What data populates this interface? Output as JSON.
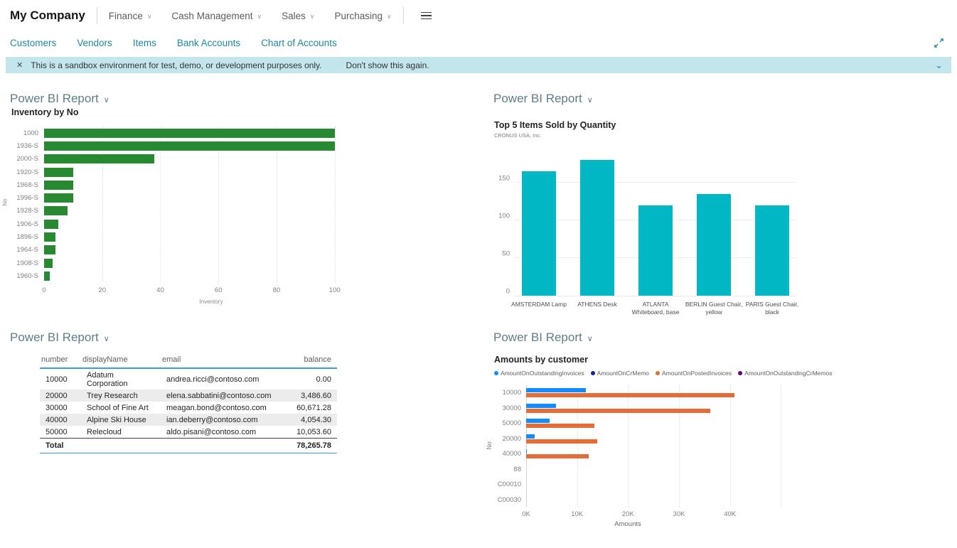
{
  "header": {
    "company": "My Company",
    "menus": [
      {
        "label": "Finance"
      },
      {
        "label": "Cash Management"
      },
      {
        "label": "Sales"
      },
      {
        "label": "Purchasing"
      }
    ],
    "nav_links": [
      "Customers",
      "Vendors",
      "Items",
      "Bank Accounts",
      "Chart of Accounts"
    ]
  },
  "banner": {
    "message": "This is a sandbox environment for test, demo, or development purposes only.",
    "action": "Don't show this again."
  },
  "parts": {
    "header_label": "Power BI Report"
  },
  "icons": {
    "close": "✕",
    "chevron_down": "∨",
    "hamburger": "hamburger-lines",
    "expand": "diagonal-resize-arrow"
  },
  "colors": {
    "link_teal": "#1b8a9e",
    "part_header": "#5f7d89",
    "banner_bg": "#c2e6ec",
    "inventory_green": "#288a30",
    "top5_teal": "#00b7c3",
    "table_header_border": "#3a99e8",
    "series_blue": "#118DFF",
    "series_navy": "#12239E",
    "series_orange": "#E66C37",
    "series_purple": "#6B007B"
  },
  "chart_data": [
    {
      "id": "inventory",
      "type": "bar",
      "orientation": "horizontal",
      "title": "Inventory by No",
      "categories": [
        "1000",
        "1936-S",
        "2000-S",
        "1920-S",
        "1968-S",
        "1996-S",
        "1928-S",
        "1906-S",
        "1896-S",
        "1964-S",
        "1908-S",
        "1960-S"
      ],
      "values": [
        100,
        100,
        38,
        10,
        10,
        10,
        8,
        5,
        4,
        4,
        3,
        2
      ],
      "xlabel": "Inventory",
      "ylabel": "No",
      "xticks": [
        0,
        20,
        40,
        60,
        80,
        100
      ],
      "xlim": [
        0,
        115
      ],
      "grid": true,
      "bar_color": "#288a30"
    },
    {
      "id": "top5-items",
      "type": "bar",
      "orientation": "vertical",
      "title": "Top 5 Items Sold by Quantity",
      "subtitle": "CRONUS USA, Inc.",
      "categories": [
        "AMSTERDAM Lamp",
        "ATHENS Desk",
        "ATLANTA Whiteboard, base",
        "BERLIN Guest Chair, yellow",
        "PARIS Guest Chair, black"
      ],
      "values": [
        165,
        180,
        120,
        135,
        120
      ],
      "yticks": [
        0,
        50,
        100,
        150
      ],
      "ylim": [
        0,
        200
      ],
      "grid": true,
      "bar_color": "#00b7c3"
    },
    {
      "id": "customer-table",
      "type": "table",
      "columns": [
        "number",
        "displayName",
        "email",
        "balance"
      ],
      "rows": [
        [
          "10000",
          "Adatum Corporation",
          "andrea.ricci@contoso.com",
          "0.00"
        ],
        [
          "20000",
          "Trey Research",
          "elena.sabbatini@contoso.com",
          "3,486.60"
        ],
        [
          "30000",
          "School of Fine Art",
          "meagan.bond@contoso.com",
          "60,671.28"
        ],
        [
          "40000",
          "Alpine Ski House",
          "ian.deberry@contoso.com",
          "4,054.30"
        ],
        [
          "50000",
          "Relecloud",
          "aldo.pisani@contoso.com",
          "10,053.60"
        ]
      ],
      "total_label": "Total",
      "total_value": "78,265.78"
    },
    {
      "id": "amounts-by-customer",
      "type": "bar",
      "orientation": "horizontal-grouped",
      "title": "Amounts by customer",
      "categories": [
        "10000",
        "30000",
        "50000",
        "20000",
        "40000",
        "88",
        "C00010",
        "C00030"
      ],
      "series": [
        {
          "name": "AmountOnOutstandingInvoices",
          "color": "#118DFF",
          "values": [
            11.7,
            5.9,
            4.6,
            1.7,
            0.2,
            0,
            0,
            0
          ]
        },
        {
          "name": "AmountOnCrMemo",
          "color": "#12239E",
          "values": [
            0,
            0,
            0,
            0,
            0,
            0,
            0,
            0
          ]
        },
        {
          "name": "AmountOnPostedInvoices",
          "color": "#E66C37",
          "values": [
            40.9,
            36.2,
            13.4,
            13.9,
            12.3,
            0,
            0,
            0
          ]
        },
        {
          "name": "AmountOnOutstandingCrMemos",
          "color": "#6B007B",
          "values": [
            0,
            0,
            0,
            0,
            0,
            0,
            0,
            0
          ]
        }
      ],
      "xlabel": "Amounts",
      "ylabel": "No",
      "xticks": [
        "0K",
        "10K",
        "20K",
        "30K",
        "40K"
      ],
      "xtick_values": [
        0,
        10,
        20,
        30,
        40
      ],
      "xlim": [
        0,
        60
      ],
      "grid": true,
      "legend_position": "top"
    }
  ]
}
